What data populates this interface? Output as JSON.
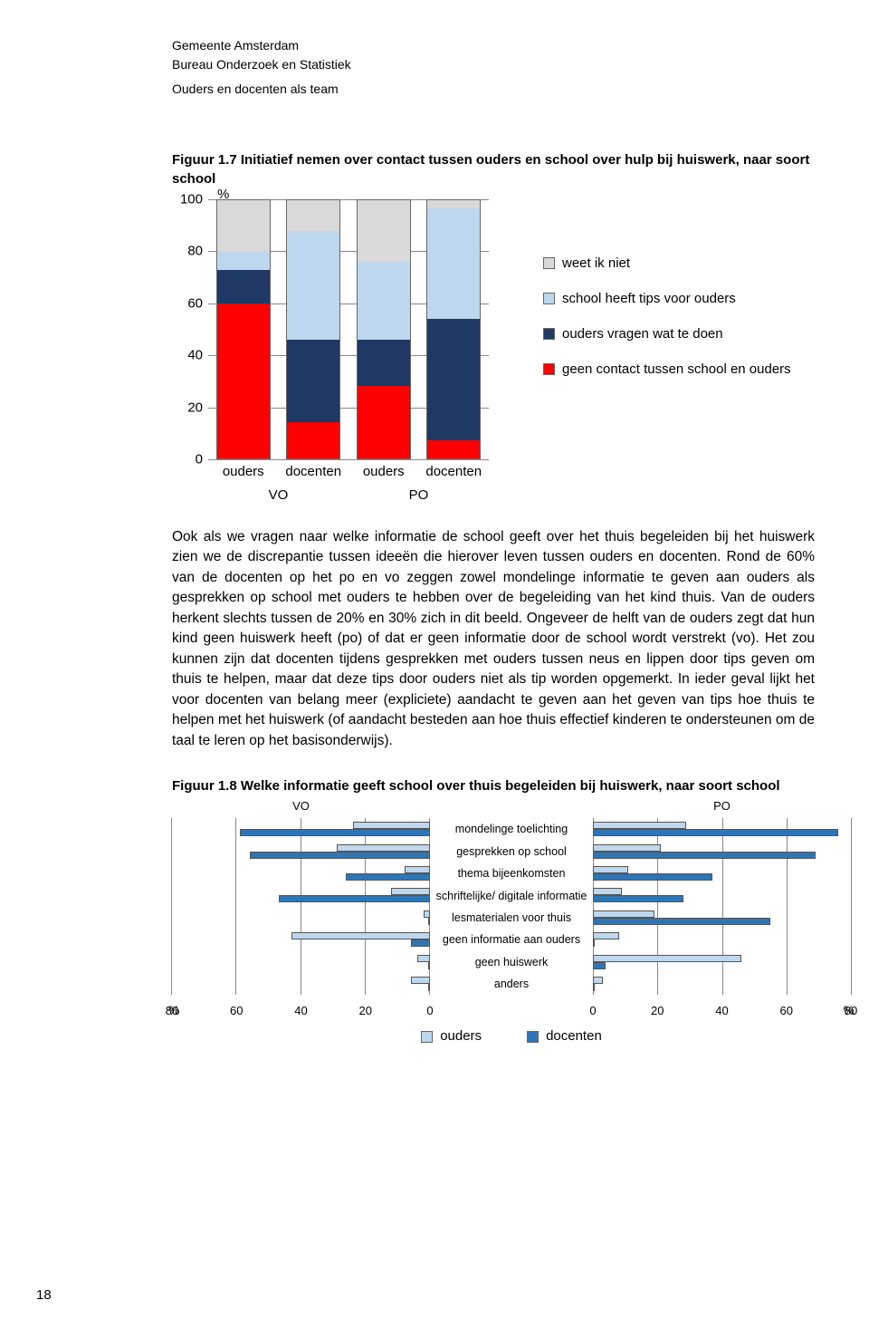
{
  "header": {
    "org_line1": "Gemeente Amsterdam",
    "org_line2": "Bureau Onderzoek en Statistiek",
    "report_title": "Ouders en docenten als team"
  },
  "pageNumber": "18",
  "figure1": {
    "caption": "Figuur 1.7 Initiatief nemen over contact tussen ouders en school over hulp bij huiswerk, naar soort school",
    "y_unit": "%",
    "ymax": 100,
    "ytick_step": 20,
    "yticks": [
      "0",
      "20",
      "40",
      "60",
      "80",
      "100"
    ],
    "categories": [
      "ouders",
      "docenten",
      "ouders",
      "docenten"
    ],
    "groups": [
      "VO",
      "PO"
    ],
    "series_labels": {
      "weet_niet": "weet ik niet",
      "tips": "school heeft tips voor ouders",
      "vragen": "ouders vragen wat te doen",
      "geen": "geen contact tussen school en ouders"
    },
    "colors": {
      "weet_niet": "#d9d9d9",
      "tips": "#bdd7ee",
      "vragen": "#1f3864",
      "geen": "#ff0000",
      "border": "#666666"
    },
    "bars": [
      {
        "geen": 60,
        "vragen": 13,
        "tips": 7,
        "weet_niet": 20
      },
      {
        "geen": 14,
        "vragen": 32,
        "tips": 42,
        "weet_niet": 12
      },
      {
        "geen": 28,
        "vragen": 18,
        "tips": 30,
        "weet_niet": 24
      },
      {
        "geen": 7,
        "vragen": 47,
        "tips": 43,
        "weet_niet": 3
      }
    ]
  },
  "bodyText": "Ook als we vragen naar welke informatie de school geeft over het thuis begeleiden bij het huiswerk zien we de discrepantie tussen ideeën die hierover leven tussen ouders en docenten. Rond de 60% van de docenten op het po en vo zeggen zowel mondelinge informatie te geven aan ouders als gesprekken op school met ouders te hebben over de begeleiding van het kind thuis. Van de ouders herkent slechts tussen de 20% en 30% zich in dit beeld. Ongeveer de helft van de ouders zegt dat hun kind geen huiswerk heeft (po) of dat er geen informatie door de school wordt verstrekt (vo). Het zou kunnen zijn dat docenten tijdens gesprekken met ouders tussen neus en lippen door tips geven om thuis te helpen, maar dat deze tips door ouders niet als tip worden opgemerkt. In ieder geval lijkt het voor docenten van belang meer (expliciete) aandacht te geven aan het geven van tips hoe thuis te helpen met het huiswerk (of aandacht besteden aan hoe thuis effectief kinderen te ondersteunen om de taal te leren op het basisonderwijs).",
  "figure2": {
    "caption": "Figuur 1.8 Welke informatie geeft school over thuis begeleiden bij huiswerk, naar soort school",
    "panel_labels": {
      "left": "VO",
      "right": "PO"
    },
    "xmax": 80,
    "xtick_step": 20,
    "xticks": [
      "0",
      "20",
      "40",
      "60",
      "80"
    ],
    "x_unit": "%",
    "categories": [
      "mondelinge toelichting",
      "gesprekken op school",
      "thema bijeenkomsten",
      "schriftelijke/ digitale informatie",
      "lesmaterialen voor thuis",
      "geen informatie aan ouders",
      "geen huiswerk",
      "anders"
    ],
    "colors": {
      "ouders": "#bdd7ee",
      "docenten": "#2e75b6",
      "grid": "#888888"
    },
    "series_labels": {
      "ouders": "ouders",
      "docenten": "docenten"
    },
    "vo": [
      {
        "ouders": 24,
        "docenten": 59
      },
      {
        "ouders": 29,
        "docenten": 56
      },
      {
        "ouders": 8,
        "docenten": 26
      },
      {
        "ouders": 12,
        "docenten": 47
      },
      {
        "ouders": 2,
        "docenten": 0
      },
      {
        "ouders": 43,
        "docenten": 6
      },
      {
        "ouders": 4,
        "docenten": 0
      },
      {
        "ouders": 6,
        "docenten": 0
      }
    ],
    "po": [
      {
        "ouders": 29,
        "docenten": 76
      },
      {
        "ouders": 21,
        "docenten": 69
      },
      {
        "ouders": 11,
        "docenten": 37
      },
      {
        "ouders": 9,
        "docenten": 28
      },
      {
        "ouders": 19,
        "docenten": 55
      },
      {
        "ouders": 8,
        "docenten": 0
      },
      {
        "ouders": 46,
        "docenten": 4
      },
      {
        "ouders": 3,
        "docenten": 0
      }
    ]
  }
}
